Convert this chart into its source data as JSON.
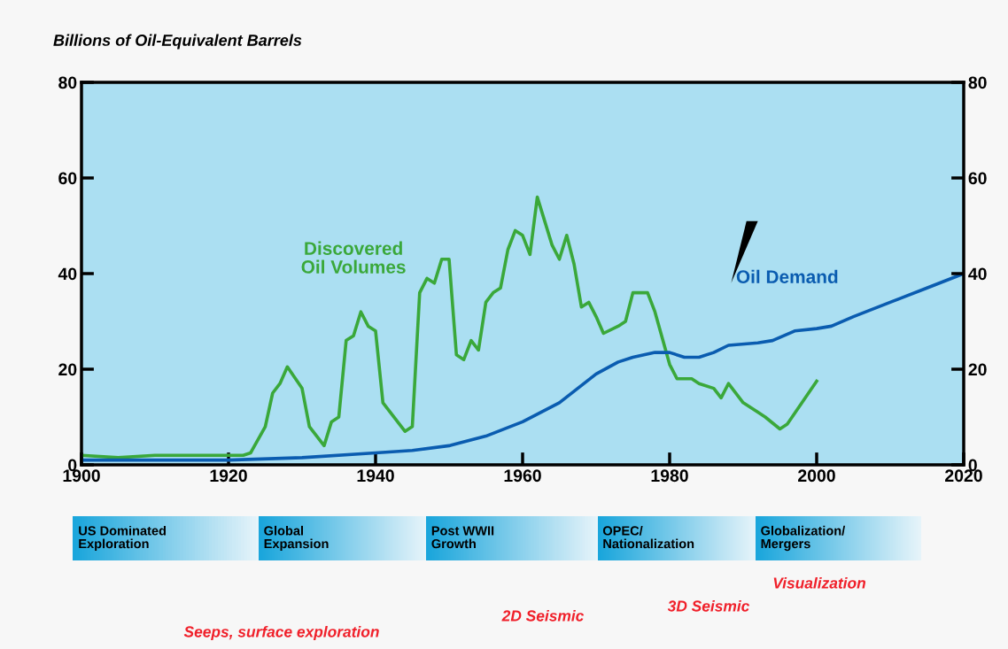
{
  "chart_data": {
    "type": "line",
    "ylabel": "Billions of Oil-Equivalent Barrels",
    "xlim": [
      1900,
      2020
    ],
    "xticks": [
      1900,
      1920,
      1940,
      1960,
      1980,
      2000,
      2020
    ],
    "ylim": [
      0,
      80
    ],
    "yticks": [
      0,
      20,
      40,
      60,
      80
    ],
    "y2lim": [
      0,
      80
    ],
    "y2ticks": [
      0,
      20,
      40,
      60,
      80
    ],
    "grid": false,
    "legend": false,
    "marker": "none",
    "line_style": "solid",
    "series": [
      {
        "name": "Discovered\nOil Volumes",
        "color": "#3aa83a",
        "x": [
          1900,
          1905,
          1910,
          1915,
          1922,
          1923,
          1925,
          1926,
          1927,
          1928,
          1930,
          1931,
          1933,
          1934,
          1935,
          1936,
          1937,
          1938,
          1939,
          1940,
          1941,
          1942,
          1944,
          1945,
          1946,
          1947,
          1948,
          1949,
          1950,
          1951,
          1952,
          1953,
          1954,
          1955,
          1956,
          1957,
          1958,
          1959,
          1960,
          1961,
          1962,
          1963,
          1964,
          1965,
          1966,
          1967,
          1968,
          1969,
          1970,
          1971,
          1973,
          1974,
          1975,
          1977,
          1978,
          1980,
          1981,
          1983,
          1984,
          1986,
          1987,
          1988,
          1990,
          1992,
          1993,
          1995,
          1996,
          2000
        ],
        "values": [
          2,
          1.5,
          2,
          2,
          2,
          2.5,
          8,
          15,
          17,
          20.5,
          16,
          8,
          4,
          9,
          10,
          26,
          27,
          32,
          29,
          28,
          13,
          11,
          7,
          8,
          36,
          39,
          38,
          43,
          43,
          23,
          22,
          26,
          24,
          34,
          36,
          37,
          45,
          49,
          48,
          44,
          56,
          51,
          46,
          43,
          48,
          42,
          33,
          34,
          31,
          27.5,
          29,
          30,
          36,
          36,
          32,
          21,
          18,
          18,
          17,
          16,
          14,
          17,
          13,
          11,
          10,
          7.5,
          8.5,
          17.5
        ]
      },
      {
        "name": "Oil Demand",
        "color": "#0a5cb0",
        "x": [
          1900,
          1920,
          1930,
          1940,
          1945,
          1950,
          1955,
          1960,
          1965,
          1970,
          1973,
          1975,
          1978,
          1980,
          1982,
          1984,
          1986,
          1988,
          1992,
          1994,
          1997,
          2000,
          2002,
          2005,
          2010,
          2015,
          2020
        ],
        "values": [
          1,
          1,
          1.5,
          2.5,
          3,
          4,
          6,
          9,
          13,
          19,
          21.5,
          22.5,
          23.5,
          23.5,
          22.5,
          22.5,
          23.5,
          25,
          25.5,
          26,
          28,
          28.5,
          29,
          31,
          34,
          37,
          40
        ]
      }
    ],
    "annotations": [
      "US Dominated\nExploration",
      "Global\nExpansion",
      "Post WWII\nGrowth",
      "OPEC/\nNationalization",
      "Globalization/\nMergers",
      "Visualization",
      "3D Seismic",
      "2D Seismic",
      "Seeps, surface exploration"
    ]
  }
}
